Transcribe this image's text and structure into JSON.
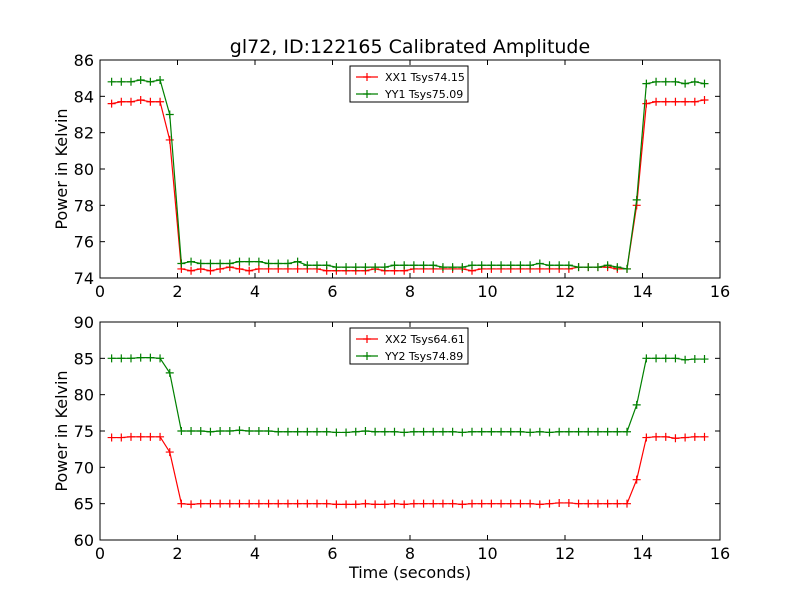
{
  "chart_data": [
    {
      "type": "line",
      "title": "gl72, ID:122165 Calibrated Amplitude",
      "xlabel": "",
      "ylabel": "Power in Kelvin",
      "xlim": [
        0,
        16
      ],
      "ylim": [
        74,
        86
      ],
      "xticks": [
        "0",
        "2",
        "4",
        "6",
        "8",
        "10",
        "12",
        "14",
        "16"
      ],
      "yticks": [
        "74",
        "76",
        "78",
        "80",
        "82",
        "84",
        "86"
      ],
      "legend_position": "upper center",
      "grid": false,
      "series": [
        {
          "name": "XX1 Tsys74.15",
          "color": "#ff0000",
          "x": [
            0.3,
            0.55,
            0.8,
            1.05,
            1.3,
            1.55,
            1.8,
            2.1,
            2.35,
            2.6,
            2.85,
            3.1,
            3.35,
            3.6,
            3.85,
            4.1,
            4.35,
            4.6,
            4.85,
            5.1,
            5.35,
            5.6,
            5.85,
            6.1,
            6.35,
            6.6,
            6.85,
            7.1,
            7.35,
            7.6,
            7.85,
            8.1,
            8.35,
            8.6,
            8.85,
            9.1,
            9.35,
            9.6,
            9.85,
            10.1,
            10.35,
            10.6,
            10.85,
            11.1,
            11.35,
            11.6,
            11.85,
            12.1,
            12.35,
            12.6,
            12.85,
            13.1,
            13.35,
            13.6,
            13.85,
            14.1,
            14.35,
            14.6,
            14.85,
            15.1,
            15.35,
            15.6
          ],
          "y": [
            83.6,
            83.7,
            83.7,
            83.8,
            83.7,
            83.7,
            81.6,
            74.5,
            74.4,
            74.5,
            74.4,
            74.5,
            74.6,
            74.5,
            74.4,
            74.5,
            74.5,
            74.5,
            74.5,
            74.5,
            74.5,
            74.5,
            74.4,
            74.4,
            74.4,
            74.4,
            74.4,
            74.5,
            74.4,
            74.4,
            74.4,
            74.5,
            74.5,
            74.5,
            74.5,
            74.5,
            74.5,
            74.4,
            74.5,
            74.5,
            74.5,
            74.5,
            74.5,
            74.5,
            74.5,
            74.5,
            74.5,
            74.5,
            74.6,
            74.6,
            74.6,
            74.6,
            74.5,
            74.5,
            78.0,
            83.6,
            83.7,
            83.7,
            83.7,
            83.7,
            83.7,
            83.8
          ]
        },
        {
          "name": "YY1 Tsys75.09",
          "color": "#008000",
          "x": [
            0.3,
            0.55,
            0.8,
            1.05,
            1.3,
            1.55,
            1.8,
            2.1,
            2.35,
            2.6,
            2.85,
            3.1,
            3.35,
            3.6,
            3.85,
            4.1,
            4.35,
            4.6,
            4.85,
            5.1,
            5.35,
            5.6,
            5.85,
            6.1,
            6.35,
            6.6,
            6.85,
            7.1,
            7.35,
            7.6,
            7.85,
            8.1,
            8.35,
            8.6,
            8.85,
            9.1,
            9.35,
            9.6,
            9.85,
            10.1,
            10.35,
            10.6,
            10.85,
            11.1,
            11.35,
            11.6,
            11.85,
            12.1,
            12.35,
            12.6,
            12.85,
            13.1,
            13.35,
            13.6,
            13.85,
            14.1,
            14.35,
            14.6,
            14.85,
            15.1,
            15.35,
            15.6
          ],
          "y": [
            84.8,
            84.8,
            84.8,
            84.9,
            84.8,
            84.9,
            83.0,
            74.8,
            74.9,
            74.8,
            74.8,
            74.8,
            74.8,
            74.9,
            74.9,
            74.9,
            74.8,
            74.8,
            74.8,
            74.9,
            74.7,
            74.7,
            74.7,
            74.6,
            74.6,
            74.6,
            74.6,
            74.6,
            74.6,
            74.7,
            74.7,
            74.7,
            74.7,
            74.7,
            74.6,
            74.6,
            74.6,
            74.7,
            74.7,
            74.7,
            74.7,
            74.7,
            74.7,
            74.7,
            74.8,
            74.7,
            74.7,
            74.7,
            74.6,
            74.6,
            74.6,
            74.7,
            74.6,
            74.5,
            78.3,
            84.7,
            84.8,
            84.8,
            84.8,
            84.7,
            84.8,
            84.7
          ]
        }
      ]
    },
    {
      "type": "line",
      "title": "",
      "xlabel": "Time (seconds)",
      "ylabel": "Power in Kelvin",
      "xlim": [
        0,
        16
      ],
      "ylim": [
        60,
        90
      ],
      "xticks": [
        "0",
        "2",
        "4",
        "6",
        "8",
        "10",
        "12",
        "14",
        "16"
      ],
      "yticks": [
        "60",
        "65",
        "70",
        "75",
        "80",
        "85",
        "90"
      ],
      "legend_position": "upper center",
      "grid": false,
      "series": [
        {
          "name": "XX2 Tsys64.61",
          "color": "#ff0000",
          "x": [
            0.3,
            0.55,
            0.8,
            1.05,
            1.3,
            1.55,
            1.8,
            2.1,
            2.35,
            2.6,
            2.85,
            3.1,
            3.35,
            3.6,
            3.85,
            4.1,
            4.35,
            4.6,
            4.85,
            5.1,
            5.35,
            5.6,
            5.85,
            6.1,
            6.35,
            6.6,
            6.85,
            7.1,
            7.35,
            7.6,
            7.85,
            8.1,
            8.35,
            8.6,
            8.85,
            9.1,
            9.35,
            9.6,
            9.85,
            10.1,
            10.35,
            10.6,
            10.85,
            11.1,
            11.35,
            11.6,
            11.85,
            12.1,
            12.35,
            12.6,
            12.85,
            13.1,
            13.35,
            13.6,
            13.85,
            14.1,
            14.35,
            14.6,
            14.85,
            15.1,
            15.35,
            15.6
          ],
          "y": [
            74.1,
            74.1,
            74.2,
            74.2,
            74.2,
            74.2,
            72.1,
            65.0,
            64.9,
            65.0,
            65.0,
            65.0,
            65.0,
            65.0,
            65.0,
            65.0,
            65.0,
            65.0,
            65.0,
            65.0,
            65.0,
            65.0,
            65.0,
            64.9,
            64.9,
            64.9,
            65.0,
            64.9,
            64.9,
            65.0,
            64.9,
            65.0,
            65.0,
            65.0,
            65.0,
            65.0,
            64.9,
            65.0,
            65.0,
            65.0,
            65.0,
            65.0,
            65.0,
            65.0,
            64.9,
            65.0,
            65.1,
            65.1,
            65.0,
            65.0,
            65.0,
            65.0,
            65.0,
            65.0,
            68.3,
            74.1,
            74.2,
            74.2,
            74.0,
            74.1,
            74.2,
            74.2
          ]
        },
        {
          "name": "YY2 Tsys74.89",
          "color": "#008000",
          "x": [
            0.3,
            0.55,
            0.8,
            1.05,
            1.3,
            1.55,
            1.8,
            2.1,
            2.35,
            2.6,
            2.85,
            3.1,
            3.35,
            3.6,
            3.85,
            4.1,
            4.35,
            4.6,
            4.85,
            5.1,
            5.35,
            5.6,
            5.85,
            6.1,
            6.35,
            6.6,
            6.85,
            7.1,
            7.35,
            7.6,
            7.85,
            8.1,
            8.35,
            8.6,
            8.85,
            9.1,
            9.35,
            9.6,
            9.85,
            10.1,
            10.35,
            10.6,
            10.85,
            11.1,
            11.35,
            11.6,
            11.85,
            12.1,
            12.35,
            12.6,
            12.85,
            13.1,
            13.35,
            13.6,
            13.85,
            14.1,
            14.35,
            14.6,
            14.85,
            15.1,
            15.35,
            15.6
          ],
          "y": [
            85.0,
            85.0,
            85.0,
            85.1,
            85.1,
            85.0,
            83.0,
            75.0,
            75.0,
            75.0,
            74.9,
            75.0,
            75.0,
            75.1,
            75.0,
            75.0,
            75.0,
            74.9,
            74.9,
            74.9,
            74.9,
            74.9,
            74.9,
            74.8,
            74.8,
            74.9,
            75.0,
            74.9,
            74.9,
            74.9,
            74.8,
            74.9,
            74.9,
            74.9,
            74.9,
            74.9,
            74.8,
            74.9,
            74.9,
            74.9,
            74.9,
            74.9,
            74.9,
            74.8,
            74.9,
            74.8,
            74.9,
            74.9,
            74.9,
            74.9,
            74.9,
            74.9,
            74.9,
            74.9,
            78.6,
            85.0,
            85.0,
            85.0,
            85.0,
            84.8,
            84.9,
            84.9
          ]
        }
      ]
    }
  ]
}
